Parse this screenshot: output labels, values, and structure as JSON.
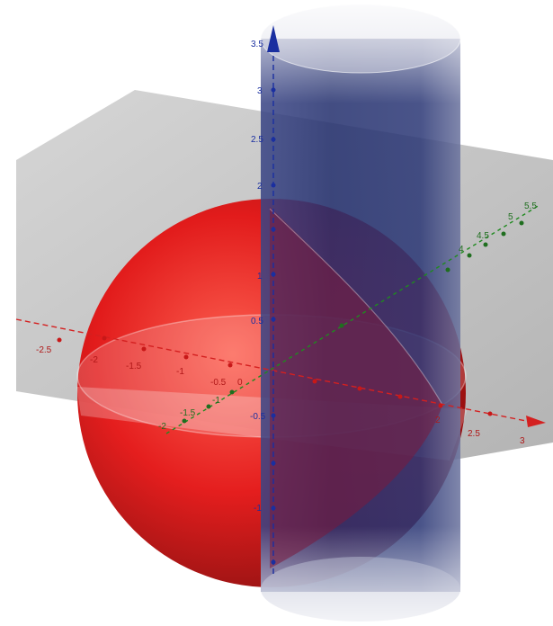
{
  "colors": {
    "background": "#ffffff",
    "plane": "#9a9a9a",
    "sphere": "#e01010",
    "cylinder": "#1c2a6b",
    "x_axis": "#d42020",
    "y_axis": "#1f8a1f",
    "z_axis": "#1a2fa0"
  },
  "axes": {
    "x_labels": [
      "-2.5",
      "-2",
      "-1.5",
      "-1",
      "-0.5",
      "0",
      "2",
      "2.5",
      "3"
    ],
    "y_labels": [
      "-2",
      "-1.5",
      "-1",
      "4",
      "4.5",
      "5",
      "5.5"
    ],
    "z_labels": [
      "3.5",
      "3",
      "2.5",
      "2",
      "1",
      "0.5",
      "-0.5",
      "-1"
    ]
  }
}
